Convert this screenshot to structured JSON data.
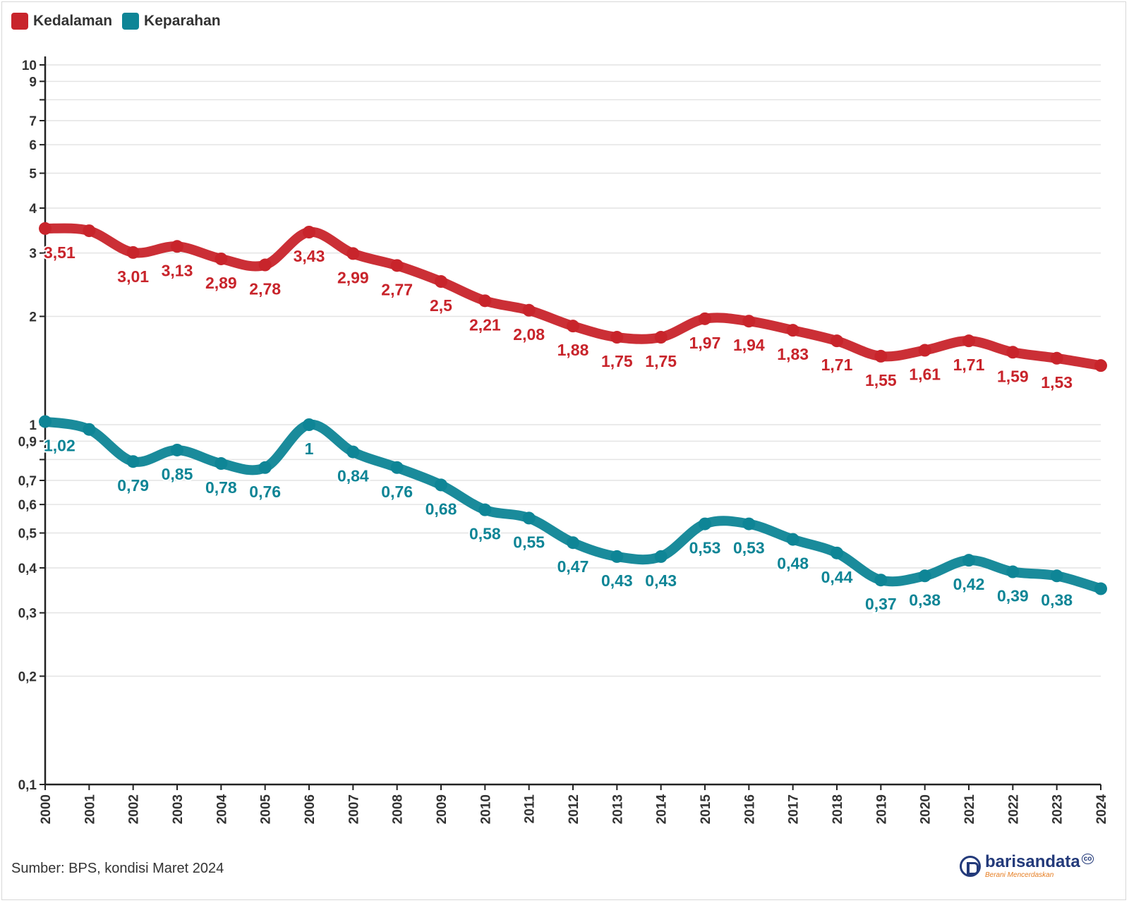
{
  "legend": [
    {
      "label": "Kedalaman",
      "color": "#c8242b"
    },
    {
      "label": "Keparahan",
      "color": "#0e8596"
    }
  ],
  "source": "Sumber: BPS, kondisi Maret 2024",
  "brand": {
    "name": "barisandata",
    "suffix": "co",
    "tagline": "Berani Mencerdaskan"
  },
  "chart_data": {
    "type": "line",
    "yscale": "log",
    "ylim": [
      0.1,
      10
    ],
    "ytick_labels": [
      "0,1",
      "0,2",
      "0,3",
      "0,4",
      "0,5",
      "0,6",
      "0,7",
      "0,9",
      "1",
      "2",
      "3",
      "4",
      "5",
      "6",
      "7",
      "9",
      "10"
    ],
    "categories": [
      "2000",
      "2001",
      "2002",
      "2003",
      "2004",
      "2005",
      "2006",
      "2007",
      "2008",
      "2009",
      "2010",
      "2011",
      "2012",
      "2013",
      "2014",
      "2015",
      "2016",
      "2017",
      "2018",
      "2019",
      "2020",
      "2021",
      "2022",
      "2023",
      "2024"
    ],
    "grid": true,
    "legend_position": "top-left",
    "series": [
      {
        "name": "Kedalaman",
        "color": "#c8242b",
        "values": [
          3.51,
          3.46,
          3.01,
          3.13,
          2.89,
          2.78,
          3.43,
          2.99,
          2.77,
          2.5,
          2.21,
          2.08,
          1.88,
          1.75,
          1.75,
          1.97,
          1.94,
          1.83,
          1.71,
          1.55,
          1.61,
          1.71,
          1.59,
          1.53,
          1.46
        ],
        "labels": [
          "3,51",
          "",
          "3,01",
          "3,13",
          "2,89",
          "2,78",
          "3,43",
          "2,99",
          "2,77",
          "2,5",
          "2,21",
          "2,08",
          "1,88",
          "1,75",
          "1,75",
          "1,97",
          "1,94",
          "1,83",
          "1,71",
          "1,55",
          "1,61",
          "1,71",
          "1,59",
          "1,53",
          ""
        ]
      },
      {
        "name": "Keparahan",
        "color": "#0e8596",
        "values": [
          1.02,
          0.97,
          0.79,
          0.85,
          0.78,
          0.76,
          1.0,
          0.84,
          0.76,
          0.68,
          0.58,
          0.55,
          0.47,
          0.43,
          0.43,
          0.53,
          0.53,
          0.48,
          0.44,
          0.37,
          0.38,
          0.42,
          0.39,
          0.38,
          0.35
        ],
        "labels": [
          "1,02",
          "",
          "0,79",
          "0,85",
          "0,78",
          "0,76",
          "1",
          "0,84",
          "0,76",
          "0,68",
          "0,58",
          "0,55",
          "0,47",
          "0,43",
          "0,43",
          "0,53",
          "0,53",
          "0,48",
          "0,44",
          "0,37",
          "0,38",
          "0,42",
          "0,39",
          "0,38",
          ""
        ]
      }
    ]
  }
}
